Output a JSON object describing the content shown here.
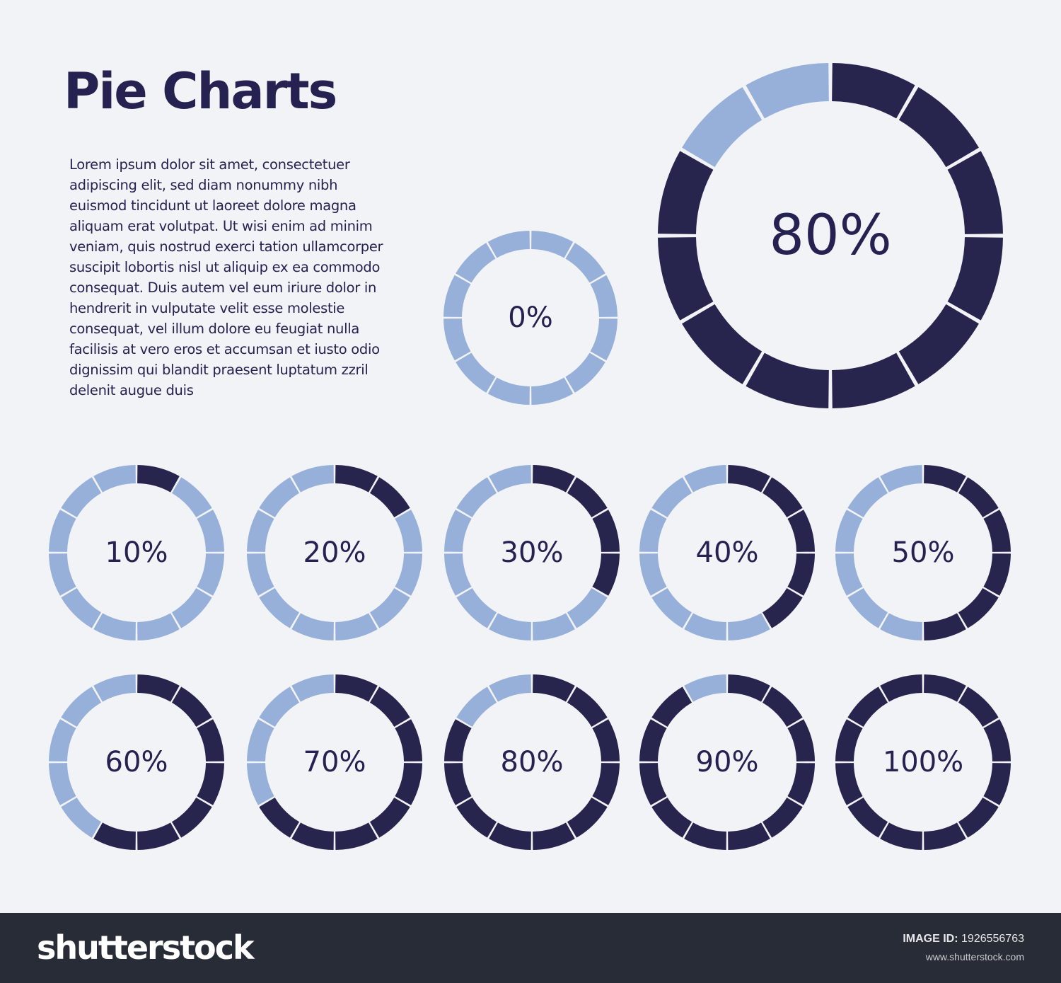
{
  "title": "Pie Charts",
  "body_text": "Lorem ipsum dolor sit amet, consectetuer adipiscing elit, sed diam nonummy nibh euismod tincidunt ut laoreet dolore magna aliquam erat volutpat. Ut wisi enim ad minim veniam, quis nostrud exerci tation ullamcorper suscipit lobortis nisl ut aliquip ex ea commodo consequat. Duis autem vel eum iriure dolor in hendrerit in vulputate velit esse molestie consequat, vel illum dolore eu feugiat nulla facilisis at vero eros et accumsan et iusto odio dignissim qui blandit praesent luptatum zzril delenit augue duis",
  "colors": {
    "filled": "#27244e",
    "empty": "#97b0da",
    "background": "#f2f3f6",
    "footer": "#282c36"
  },
  "chart_data": {
    "type": "pie",
    "segments_per_ring": 12,
    "charts": [
      {
        "value": 0,
        "label": "0%"
      },
      {
        "value": 80,
        "label": "80%"
      },
      {
        "value": 10,
        "label": "10%"
      },
      {
        "value": 20,
        "label": "20%"
      },
      {
        "value": 30,
        "label": "30%"
      },
      {
        "value": 40,
        "label": "40%"
      },
      {
        "value": 50,
        "label": "50%"
      },
      {
        "value": 60,
        "label": "60%"
      },
      {
        "value": 70,
        "label": "70%"
      },
      {
        "value": 80,
        "label": "80%"
      },
      {
        "value": 90,
        "label": "90%"
      },
      {
        "value": 100,
        "label": "100%"
      }
    ]
  },
  "footer": {
    "logo": "shutterstock",
    "image_id_label": "IMAGE ID:",
    "image_id": "1926556763",
    "url": "www.shutterstock.com"
  }
}
